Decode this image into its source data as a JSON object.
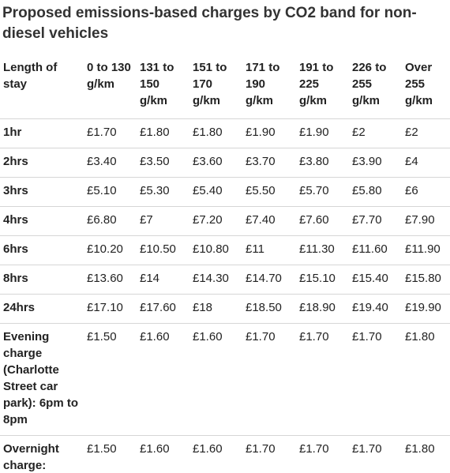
{
  "title": "Proposed emissions-based charges by CO2 band for non-diesel vehicles",
  "headers": [
    "Length of stay",
    "0 to 130 g/km",
    "131 to 150 g/km",
    "151 to 170 g/km",
    "171 to 190 g/km",
    "191 to 225 g/km",
    "226 to 255 g/km",
    "Over 255 g/km"
  ],
  "rows": [
    {
      "label": "1hr",
      "values": [
        "£1.70",
        "£1.80",
        "£1.80",
        "£1.90",
        "£1.90",
        "£2",
        "£2"
      ]
    },
    {
      "label": "2hrs",
      "values": [
        "£3.40",
        "£3.50",
        "£3.60",
        "£3.70",
        "£3.80",
        "£3.90",
        "£4"
      ]
    },
    {
      "label": "3hrs",
      "values": [
        "£5.10",
        "£5.30",
        "£5.40",
        "£5.50",
        "£5.70",
        "£5.80",
        "£6"
      ]
    },
    {
      "label": "4hrs",
      "values": [
        "£6.80",
        "£7",
        "£7.20",
        "£7.40",
        "£7.60",
        "£7.70",
        "£7.90"
      ]
    },
    {
      "label": "6hrs",
      "values": [
        "£10.20",
        "£10.50",
        "£10.80",
        "£11",
        "£11.30",
        "£11.60",
        "£11.90"
      ]
    },
    {
      "label": "8hrs",
      "values": [
        "£13.60",
        "£14",
        "£14.30",
        "£14.70",
        "£15.10",
        "£15.40",
        "£15.80"
      ]
    },
    {
      "label": "24hrs",
      "values": [
        "£17.10",
        "£17.60",
        "£18",
        "£18.50",
        "£18.90",
        "£19.40",
        "£19.90"
      ]
    },
    {
      "label": "Evening charge (Charlotte Street car park): 6pm to 8pm",
      "values": [
        "£1.50",
        "£1.60",
        "£1.60",
        "£1.70",
        "£1.70",
        "£1.70",
        "£1.80"
      ]
    },
    {
      "label": "Overnight charge:",
      "values": [
        "£1.50",
        "£1.60",
        "£1.60",
        "£1.70",
        "£1.70",
        "£1.70",
        "£1.80"
      ]
    }
  ]
}
